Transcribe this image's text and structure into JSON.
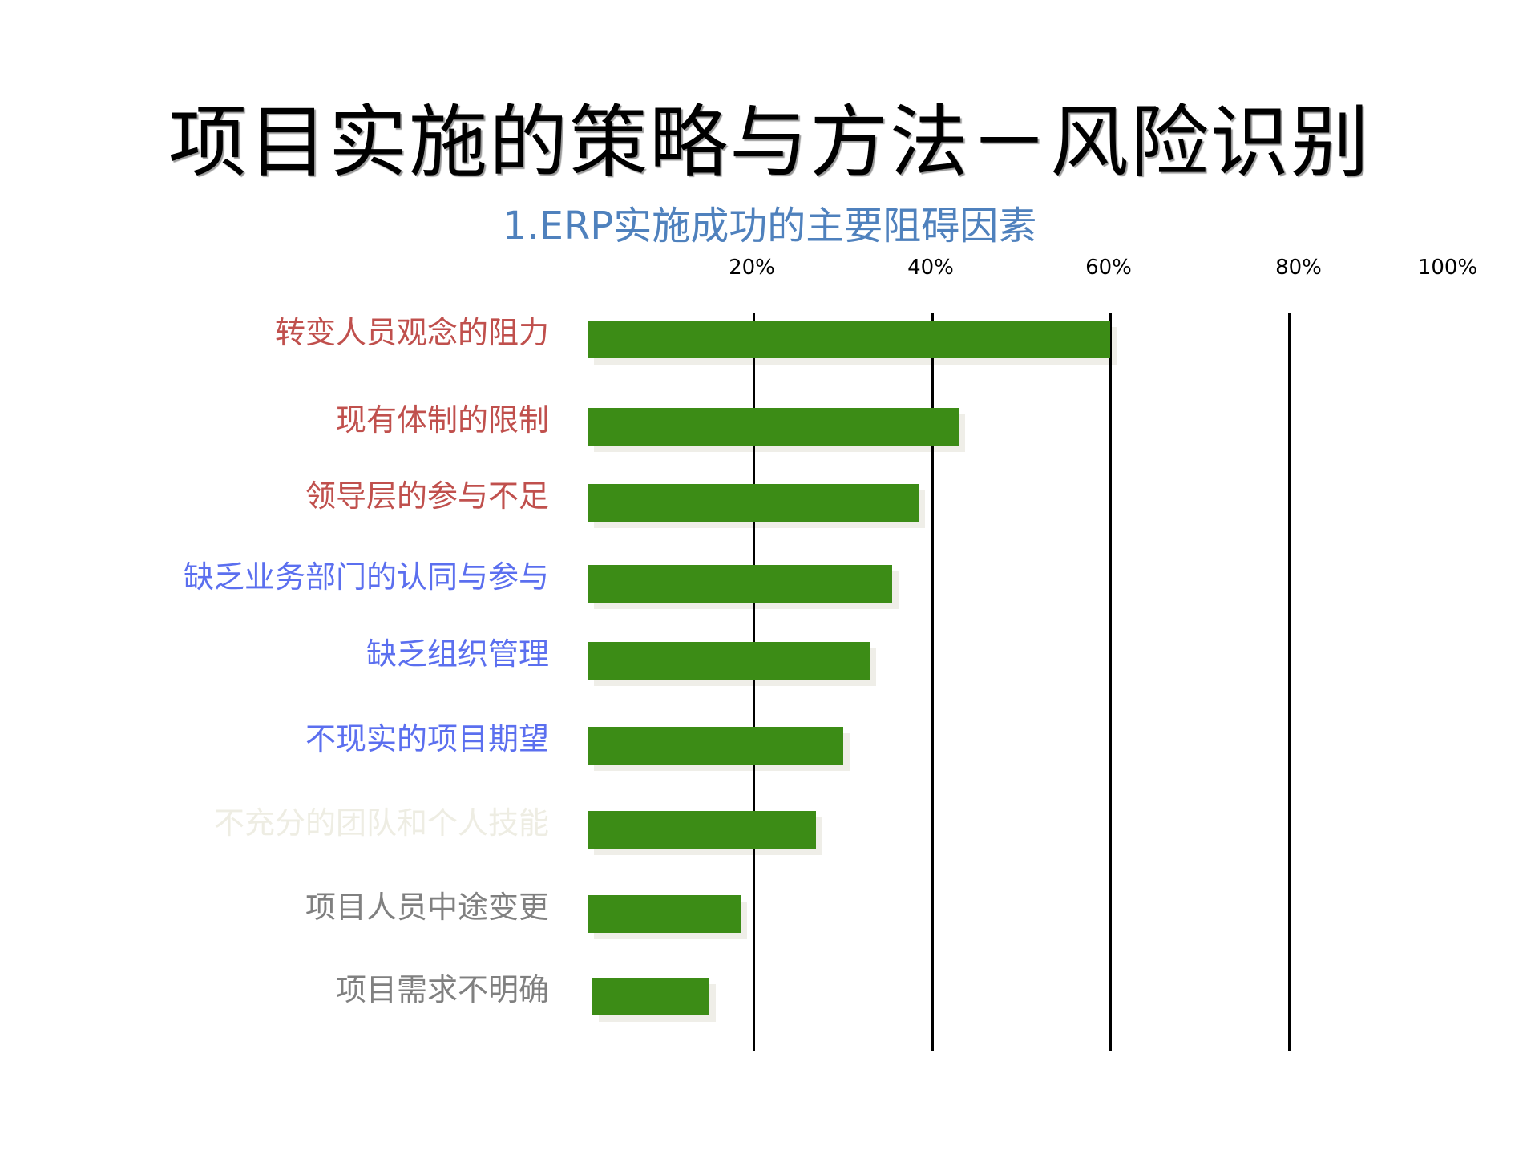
{
  "slide": {
    "title": "项目实施的策略与方法－风险识别",
    "subtitle": "1.ERP实施成功的主要阻碍因素"
  },
  "colors": {
    "bar": "#3C8C16",
    "bar_shadow": "#EFEEE8",
    "gridline": "#000000",
    "subtitle": "#4F81BD",
    "label_red": "#C0504D",
    "label_blue": "#5B6FEF",
    "label_pale": "#EEEDE3",
    "label_gray": "#808080"
  },
  "axis": {
    "ticks": [
      "20%",
      "40%",
      "60%",
      "80%",
      "100%"
    ]
  },
  "chart_data": {
    "type": "bar",
    "orientation": "horizontal",
    "title": "1.ERP实施成功的主要阻碍因素",
    "xlabel": "",
    "ylabel": "",
    "xlim": [
      0,
      100
    ],
    "x_ticks": [
      "20%",
      "40%",
      "60%",
      "80%",
      "100%"
    ],
    "gridlines_at": [
      20,
      40,
      60,
      80
    ],
    "grid": true,
    "legend": null,
    "categories": [
      "转变人员观念的阻力",
      "现有体制的限制",
      "领导层的参与不足",
      "缺乏业务部门的认同与参与",
      "缺乏组织管理",
      "不现实的项目期望",
      "不充分的团队和个人技能",
      "项目人员中途变更",
      "项目需求不明确"
    ],
    "values": [
      60,
      43,
      38.5,
      35.5,
      33,
      30,
      27,
      18.5,
      15
    ],
    "label_colors": [
      "#C0504D",
      "#C0504D",
      "#C0504D",
      "#5B6FEF",
      "#5B6FEF",
      "#5B6FEF",
      "#EEEDE3",
      "#808080",
      "#808080"
    ]
  }
}
